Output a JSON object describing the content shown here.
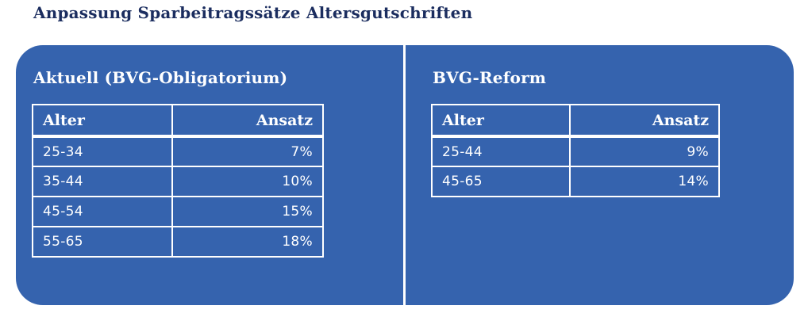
{
  "page_title": "Anpassung Sparbeitragssätze Altersgutschriften",
  "colors": {
    "card_blue": "#3563ae",
    "title_navy": "#1b2d5f",
    "table_border_white": "#ffffff",
    "text_white": "#ffffff"
  },
  "table_headers": {
    "age": "Alter",
    "rate": "Ansatz"
  },
  "panels": [
    {
      "heading": "Aktuell (BVG-Obligatorium)",
      "rows": [
        {
          "alter": "25-34",
          "ansatz": "7%"
        },
        {
          "alter": "35-44",
          "ansatz": "10%"
        },
        {
          "alter": "45-54",
          "ansatz": "15%"
        },
        {
          "alter": "55-65",
          "ansatz": "18%"
        }
      ]
    },
    {
      "heading": "BVG-Reform",
      "rows": [
        {
          "alter": "25-44",
          "ansatz": "9%"
        },
        {
          "alter": "45-65",
          "ansatz": "14%"
        }
      ]
    }
  ],
  "chart_data": [
    {
      "type": "table",
      "title": "Aktuell (BVG-Obligatorium)",
      "columns": [
        "Alter",
        "Ansatz"
      ],
      "rows": [
        [
          "25-34",
          "7%"
        ],
        [
          "35-44",
          "10%"
        ],
        [
          "45-54",
          "15%"
        ],
        [
          "55-65",
          "18%"
        ]
      ]
    },
    {
      "type": "table",
      "title": "BVG-Reform",
      "columns": [
        "Alter",
        "Ansatz"
      ],
      "rows": [
        [
          "25-44",
          "9%"
        ],
        [
          "45-65",
          "14%"
        ]
      ]
    }
  ]
}
